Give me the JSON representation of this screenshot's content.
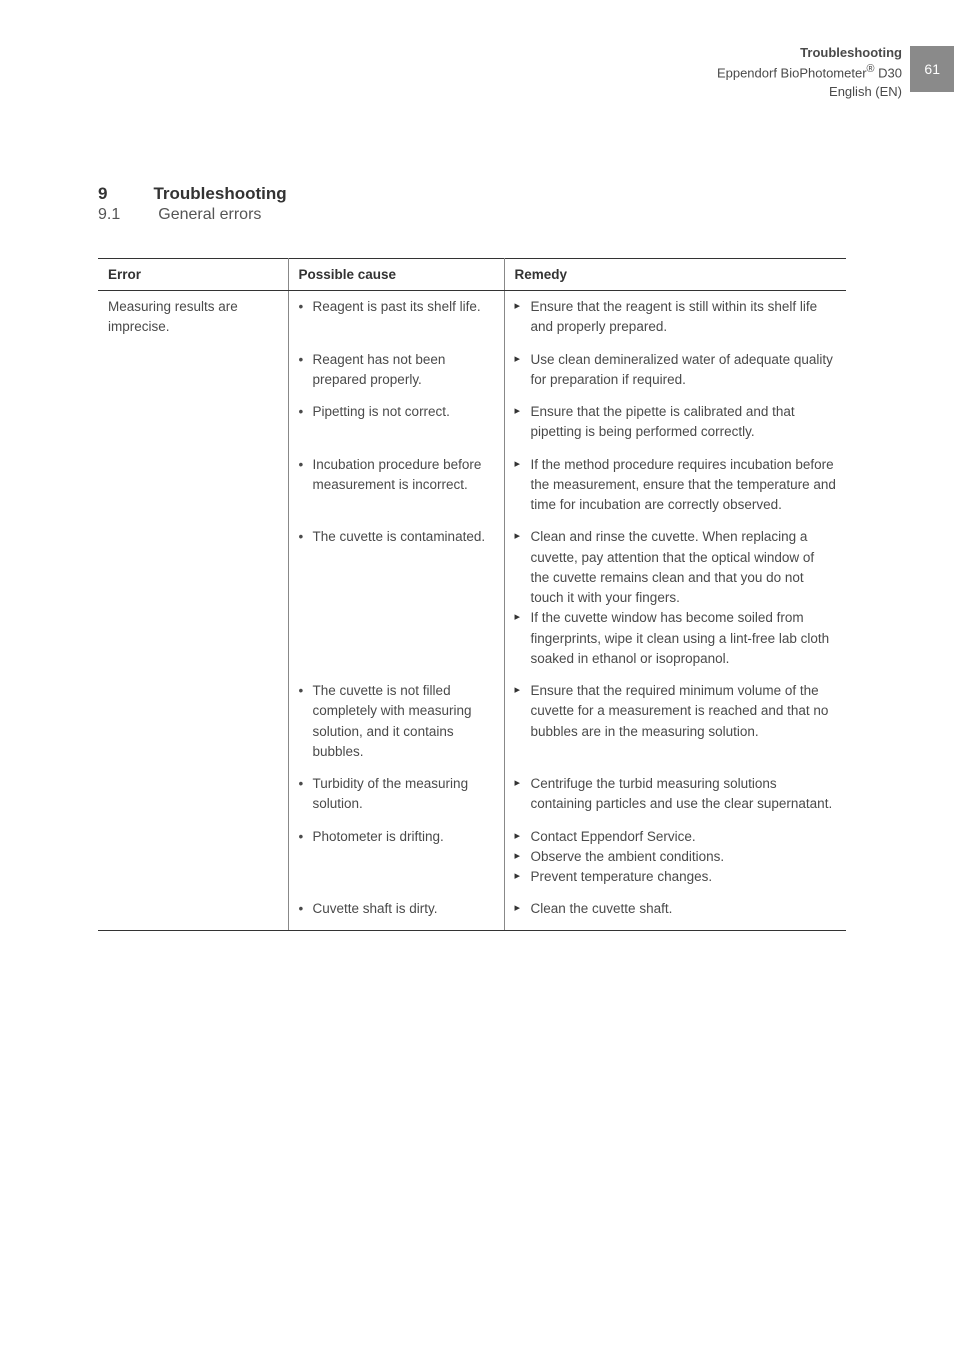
{
  "pageNumber": "61",
  "header": {
    "line1": "Troubleshooting",
    "line2_part1": "Eppendorf BioPhotometer",
    "line2_reg": "®",
    "line2_part2": " D30",
    "line3": "English (EN)"
  },
  "section": {
    "num": "9",
    "title": "Troubleshooting"
  },
  "subsection": {
    "num": "9.1",
    "title": "General errors"
  },
  "table": {
    "headers": [
      "Error",
      "Possible cause",
      "Remedy"
    ],
    "error": "Measuring results are imprecise.",
    "rows": [
      {
        "cause": "Reagent is past its shelf life.",
        "remedies": [
          "Ensure that the reagent is still within its shelf life and properly prepared."
        ]
      },
      {
        "cause": "Reagent has not been prepared properly.",
        "remedies": [
          "Use clean demineralized water of adequate quality for preparation if required."
        ]
      },
      {
        "cause": "Pipetting is not correct.",
        "remedies": [
          "Ensure that the pipette is calibrated and that pipetting is being performed correctly."
        ]
      },
      {
        "cause": "Incubation procedure before measurement is incorrect.",
        "remedies": [
          "If the method procedure requires incubation before the measurement, ensure that the temperature and time for incubation are correctly observed."
        ]
      },
      {
        "cause": "The cuvette is contaminated.",
        "remedies": [
          "Clean and rinse the cuvette. When replacing a cuvette, pay attention that the optical window of the cuvette remains clean and that you do not touch it with your fingers.",
          "If the cuvette window has become soiled from fingerprints, wipe it clean using a lint-free lab cloth soaked in ethanol or isopropanol."
        ]
      },
      {
        "cause": "The cuvette is not filled completely with measuring solution, and it contains bubbles.",
        "remedies": [
          "Ensure that the required minimum volume of the cuvette for a measurement is reached and that no bubbles are in the measuring solution."
        ]
      },
      {
        "cause": "Turbidity of the measuring solution.",
        "remedies": [
          "Centrifuge the turbid measuring solutions containing particles and use the clear supernatant."
        ]
      },
      {
        "cause": "Photometer is drifting.",
        "remedies": [
          "Contact Eppendorf Service.",
          "Observe the ambient conditions.",
          "Prevent temperature changes."
        ]
      },
      {
        "cause": "Cuvette shaft is dirty.",
        "remedies": [
          "Clean the cuvette shaft."
        ]
      }
    ]
  }
}
